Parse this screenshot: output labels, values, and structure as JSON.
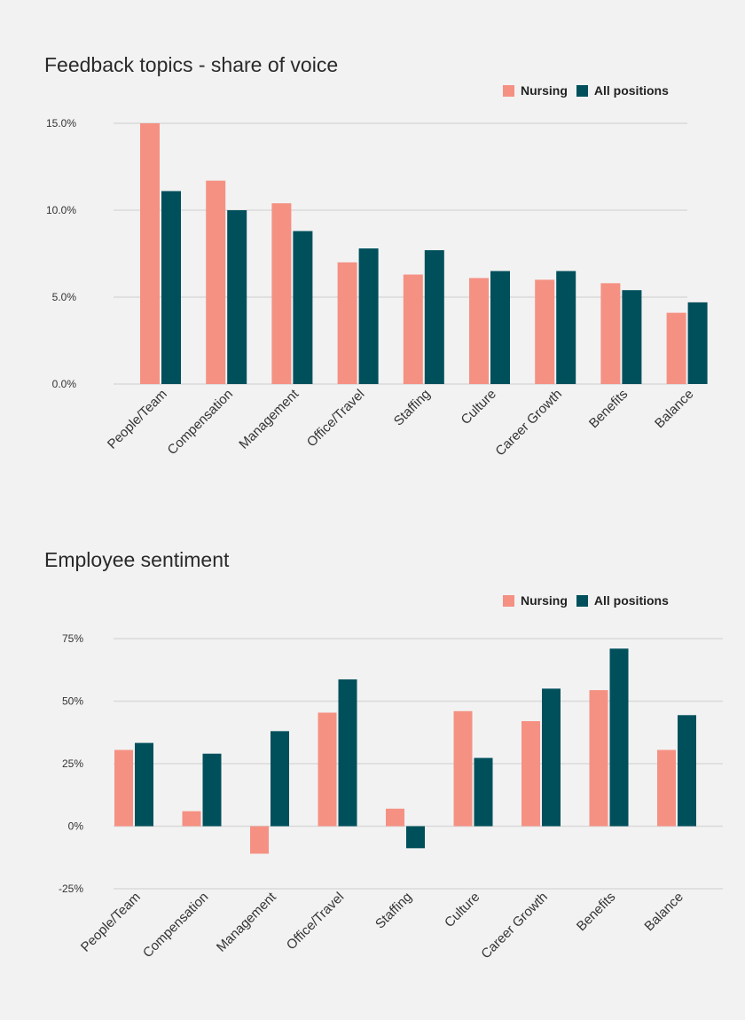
{
  "colors": {
    "nursing": "#f59183",
    "all_positions": "#00505c",
    "grid": "#d9d9d9",
    "background": "#f2f2f2"
  },
  "chart_data": [
    {
      "type": "bar",
      "title": "Feedback topics - share of voice",
      "legend": [
        "Nursing",
        "All positions"
      ],
      "legend_position": "top-right",
      "categories": [
        "People/Team",
        "Compensation",
        "Management",
        "Office/Travel",
        "Staffing",
        "Culture",
        "Career Growth",
        "Benefits",
        "Balance"
      ],
      "series": [
        {
          "name": "Nursing",
          "values": [
            15.0,
            11.7,
            10.4,
            7.0,
            6.3,
            6.1,
            6.0,
            5.8,
            4.1
          ]
        },
        {
          "name": "All positions",
          "values": [
            11.1,
            10.0,
            8.8,
            7.8,
            7.7,
            6.5,
            6.5,
            5.4,
            4.7
          ]
        }
      ],
      "yticks": [
        "0.0%",
        "5.0%",
        "10.0%",
        "15.0%"
      ],
      "ytick_values": [
        0,
        5,
        10,
        15
      ],
      "ylim": [
        0,
        15
      ],
      "grid": true
    },
    {
      "type": "bar",
      "title": "Employee sentiment",
      "legend": [
        "Nursing",
        "All positions"
      ],
      "legend_position": "top-right",
      "categories": [
        "People/Team",
        "Compensation",
        "Management",
        "Office/Travel",
        "Staffing",
        "Culture",
        "Career Growth",
        "Benefits",
        "Balance"
      ],
      "series": [
        {
          "name": "Nursing",
          "values": [
            30.5,
            6,
            -11,
            45.4,
            7,
            46,
            42,
            54.4,
            30.5
          ]
        },
        {
          "name": "All positions",
          "values": [
            33.3,
            29,
            38,
            58.7,
            -8.8,
            27.3,
            55,
            71,
            44.4
          ]
        }
      ],
      "yticks": [
        "-25%",
        "0%",
        "25%",
        "50%",
        "75%"
      ],
      "ytick_values": [
        -25,
        0,
        25,
        50,
        75
      ],
      "ylim": [
        -25,
        75
      ],
      "grid": true
    }
  ]
}
